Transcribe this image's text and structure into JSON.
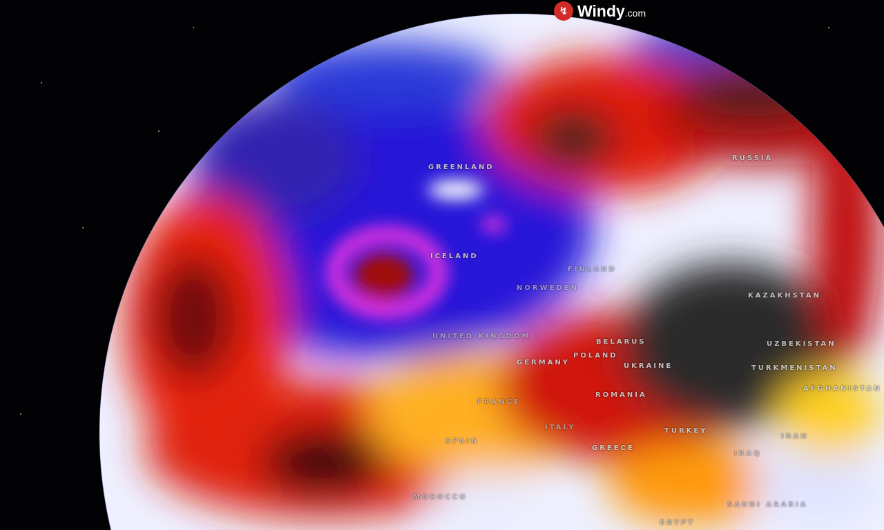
{
  "brand": {
    "name": "Windy",
    "suffix": ".com",
    "logo_icon": "windy-logo-icon",
    "accent": "#d32a2a"
  },
  "map": {
    "projection": "globe",
    "layer_colors": {
      "cold": "#2a1fd0",
      "very_cold": "#e030e0",
      "neutral": "#e8ecff",
      "warm": "#ffd020",
      "hot": "#e01a08",
      "very_hot": "#2a2a2a"
    },
    "labels": [
      "GREENLAND",
      "ICELAND",
      "RUSSIA",
      "FINLAND",
      "NORWEDEN",
      "UNITED KINGDOM",
      "BELARUS",
      "POLAND",
      "GERMANY",
      "UKRAINE",
      "KAZAKHSTAN",
      "UZBEKISTAN",
      "TURKMENISTAN",
      "AFGHANISTAN",
      "ROMANIA",
      "FRANCE",
      "ITALY",
      "SPAIN",
      "GREECE",
      "TURKEY",
      "IRAN",
      "IRAQ",
      "MOROCCO",
      "SAUDI ARABIA",
      "EGYPT"
    ]
  }
}
